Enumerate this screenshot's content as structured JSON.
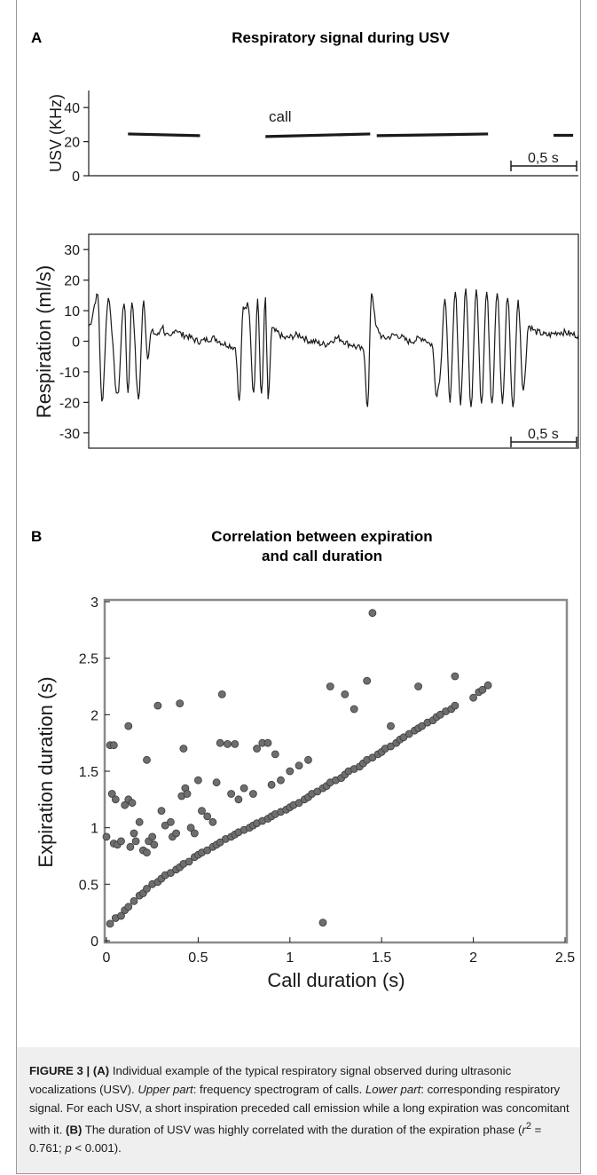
{
  "panels": {
    "a_label": "A",
    "b_label": "B"
  },
  "chart_data": [
    {
      "type": "line",
      "title": "Respiratory signal during USV",
      "ylabel": "USV (KHz)",
      "yticks": [
        "0",
        "20",
        "40"
      ],
      "ylim": [
        0,
        50
      ],
      "annotation": "call",
      "scale_bar": "0,5 s",
      "series": [
        {
          "segments": [
            {
              "x": [
                0.3,
                0.85
              ],
              "y": [
                24.5,
                23.5
              ]
            },
            {
              "x": [
                1.35,
                2.15
              ],
              "y": [
                23.0,
                24.5
              ]
            },
            {
              "x": [
                2.2,
                3.05
              ],
              "y": [
                23.5,
                24.5
              ]
            },
            {
              "x": [
                3.55,
                3.7
              ],
              "y": [
                23.7,
                23.7
              ]
            }
          ]
        }
      ],
      "xlim": [
        0,
        3.74
      ]
    },
    {
      "type": "line",
      "ylabel": "Respiration (ml/s)",
      "yticks": [
        "-30",
        "-20",
        "-10",
        "0",
        "10",
        "20",
        "30"
      ],
      "ylim": [
        -35,
        35
      ],
      "scale_bar": "0,5 s",
      "xlim": [
        0,
        3.74
      ],
      "series": [
        {
          "segments": [
            {
              "x": [
                0.0,
                0.07,
                0.1,
                0.15,
                0.22,
                0.27,
                0.3,
                0.33,
                0.38,
                0.42,
                0.45,
                0.48,
                0.53,
                0.56,
                0.59,
                0.62,
                0.66,
                0.72,
                0.85,
                0.95,
                1.05,
                1.12,
                1.15,
                1.18,
                1.22,
                1.26,
                1.29,
                1.32,
                1.35,
                1.37,
                1.4,
                1.43,
                1.5,
                1.6,
                1.7,
                1.8,
                1.9,
                2.0,
                2.05,
                2.1,
                2.13,
                2.16,
                2.2,
                2.25,
                2.35,
                2.45,
                2.55,
                2.62,
                2.66,
                2.68,
                2.72,
                2.76,
                2.8,
                2.84,
                2.88,
                2.92,
                2.96,
                3.0,
                3.04,
                3.08,
                3.12,
                3.16,
                3.2,
                3.24,
                3.28,
                3.32,
                3.36,
                3.42,
                3.5,
                3.6,
                3.74
              ],
              "y": [
                5,
                15,
                -20,
                14,
                -18,
                13,
                -17,
                13,
                -19,
                13,
                -5,
                3,
                2,
                5,
                2,
                1,
                4,
                2,
                0,
                1,
                -1,
                -2,
                -20,
                11,
                12,
                -17,
                13,
                -18,
                14,
                -20,
                4,
                3,
                1,
                2,
                0,
                -1,
                1,
                -1,
                -2,
                -3,
                -22,
                16,
                4,
                1,
                2,
                0,
                1,
                -1,
                -18,
                -12,
                14,
                -19,
                16,
                -20,
                17,
                -21,
                17,
                -20,
                17,
                -21,
                16,
                -20,
                15,
                -22,
                13,
                -16,
                5,
                3,
                2,
                3,
                2
              ]
            }
          ]
        }
      ]
    },
    {
      "type": "scatter",
      "title": "Correlation between expiration\nand call duration",
      "xlabel": "Call duration (s)",
      "ylabel": "Expiration  duration (s)",
      "xlim": [
        0,
        2.5
      ],
      "ylim": [
        0,
        3
      ],
      "xticks": [
        "0",
        "0.5",
        "1",
        "1.5",
        "2",
        "2.5"
      ],
      "yticks": [
        "0",
        "0.5",
        "1",
        "1.5",
        "2",
        "2.5",
        "3"
      ],
      "points_main": [
        [
          0.02,
          0.15
        ],
        [
          0.05,
          0.2
        ],
        [
          0.08,
          0.22
        ],
        [
          0.1,
          0.27
        ],
        [
          0.12,
          0.3
        ],
        [
          0.15,
          0.35
        ],
        [
          0.18,
          0.4
        ],
        [
          0.2,
          0.42
        ],
        [
          0.22,
          0.46
        ],
        [
          0.25,
          0.5
        ],
        [
          0.28,
          0.52
        ],
        [
          0.3,
          0.55
        ],
        [
          0.32,
          0.58
        ],
        [
          0.35,
          0.6
        ],
        [
          0.38,
          0.63
        ],
        [
          0.4,
          0.65
        ],
        [
          0.42,
          0.68
        ],
        [
          0.45,
          0.7
        ],
        [
          0.48,
          0.74
        ],
        [
          0.5,
          0.76
        ],
        [
          0.52,
          0.78
        ],
        [
          0.55,
          0.8
        ],
        [
          0.58,
          0.83
        ],
        [
          0.6,
          0.85
        ],
        [
          0.62,
          0.87
        ],
        [
          0.65,
          0.9
        ],
        [
          0.68,
          0.92
        ],
        [
          0.7,
          0.94
        ],
        [
          0.72,
          0.96
        ],
        [
          0.75,
          0.98
        ],
        [
          0.78,
          1.0
        ],
        [
          0.8,
          1.02
        ],
        [
          0.82,
          1.04
        ],
        [
          0.85,
          1.06
        ],
        [
          0.88,
          1.08
        ],
        [
          0.9,
          1.1
        ],
        [
          0.92,
          1.12
        ],
        [
          0.95,
          1.14
        ],
        [
          0.98,
          1.16
        ],
        [
          1.0,
          1.18
        ],
        [
          1.02,
          1.2
        ],
        [
          1.05,
          1.22
        ],
        [
          1.08,
          1.25
        ],
        [
          1.1,
          1.27
        ],
        [
          1.12,
          1.3
        ],
        [
          1.15,
          1.32
        ],
        [
          1.18,
          1.35
        ],
        [
          1.2,
          1.37
        ],
        [
          1.22,
          1.4
        ],
        [
          1.25,
          1.42
        ],
        [
          1.28,
          1.44
        ],
        [
          1.3,
          1.47
        ],
        [
          1.32,
          1.5
        ],
        [
          1.35,
          1.52
        ],
        [
          1.38,
          1.54
        ],
        [
          1.4,
          1.57
        ],
        [
          1.42,
          1.6
        ],
        [
          1.45,
          1.62
        ],
        [
          1.48,
          1.65
        ],
        [
          1.5,
          1.67
        ],
        [
          1.52,
          1.7
        ],
        [
          1.55,
          1.72
        ],
        [
          1.58,
          1.75
        ],
        [
          1.6,
          1.78
        ],
        [
          1.62,
          1.8
        ],
        [
          1.65,
          1.83
        ],
        [
          1.68,
          1.86
        ],
        [
          1.7,
          1.88
        ],
        [
          1.72,
          1.9
        ],
        [
          1.75,
          1.93
        ],
        [
          1.78,
          1.95
        ],
        [
          1.8,
          1.98
        ],
        [
          1.82,
          2.0
        ],
        [
          1.85,
          2.03
        ],
        [
          1.88,
          2.05
        ],
        [
          1.9,
          2.08
        ],
        [
          2.0,
          2.15
        ],
        [
          2.03,
          2.2
        ],
        [
          2.05,
          2.22
        ],
        [
          2.08,
          2.26
        ]
      ],
      "points_outliers": [
        [
          0.0,
          0.92
        ],
        [
          0.02,
          1.73
        ],
        [
          0.04,
          1.73
        ],
        [
          0.03,
          1.3
        ],
        [
          0.05,
          1.25
        ],
        [
          0.04,
          0.86
        ],
        [
          0.06,
          0.85
        ],
        [
          0.08,
          0.88
        ],
        [
          0.1,
          1.2
        ],
        [
          0.12,
          1.25
        ],
        [
          0.14,
          1.22
        ],
        [
          0.12,
          1.9
        ],
        [
          0.13,
          0.83
        ],
        [
          0.15,
          0.95
        ],
        [
          0.16,
          0.88
        ],
        [
          0.18,
          1.05
        ],
        [
          0.2,
          0.8
        ],
        [
          0.22,
          0.78
        ],
        [
          0.23,
          0.88
        ],
        [
          0.22,
          1.6
        ],
        [
          0.25,
          0.92
        ],
        [
          0.26,
          0.85
        ],
        [
          0.28,
          2.08
        ],
        [
          0.3,
          1.15
        ],
        [
          0.32,
          1.02
        ],
        [
          0.35,
          1.05
        ],
        [
          0.36,
          0.92
        ],
        [
          0.38,
          0.95
        ],
        [
          0.4,
          2.1
        ],
        [
          0.41,
          1.28
        ],
        [
          0.42,
          1.7
        ],
        [
          0.43,
          1.35
        ],
        [
          0.44,
          1.3
        ],
        [
          0.46,
          1.0
        ],
        [
          0.48,
          0.95
        ],
        [
          0.5,
          1.42
        ],
        [
          0.52,
          1.15
        ],
        [
          0.55,
          1.1
        ],
        [
          0.58,
          1.05
        ],
        [
          0.6,
          1.4
        ],
        [
          0.62,
          1.75
        ],
        [
          0.63,
          2.18
        ],
        [
          0.66,
          1.74
        ],
        [
          0.68,
          1.3
        ],
        [
          0.7,
          1.74
        ],
        [
          0.72,
          1.25
        ],
        [
          0.75,
          1.35
        ],
        [
          0.8,
          1.3
        ],
        [
          0.82,
          1.7
        ],
        [
          0.85,
          1.75
        ],
        [
          0.88,
          1.75
        ],
        [
          0.92,
          1.65
        ],
        [
          0.9,
          1.38
        ],
        [
          0.95,
          1.42
        ],
        [
          1.0,
          1.5
        ],
        [
          1.05,
          1.55
        ],
        [
          1.1,
          1.6
        ],
        [
          1.22,
          2.25
        ],
        [
          1.3,
          2.18
        ],
        [
          1.35,
          2.05
        ],
        [
          1.42,
          2.3
        ],
        [
          1.45,
          2.9
        ],
        [
          1.55,
          1.9
        ],
        [
          1.7,
          2.25
        ],
        [
          1.9,
          2.34
        ],
        [
          1.18,
          0.16
        ]
      ]
    }
  ],
  "caption": {
    "fig_label": "FIGURE 3 | ",
    "a_ref": "(A)",
    "a_text": " Individual example of the typical respiratory signal observed during ultrasonic vocalizations (USV). ",
    "upper_label": "Upper part",
    "upper_text": ": frequency spectrogram of calls. ",
    "lower_label": "Lower part",
    "lower_text": ": corresponding respiratory signal. For each USV, a short inspiration preceded call emission while a long expiration was concomitant with it. ",
    "b_ref": "(B)",
    "b_text": " The duration of USV was highly correlated with the duration of the expiration phase (",
    "stat_r": "r",
    "stat_sup": "2",
    "stat_rest": " = 0.761; ",
    "stat_p": "p",
    "stat_end": " < 0.001)."
  },
  "colors": {
    "trace": "#1a1a1a",
    "marker_fill": "#6e6e6e",
    "marker_edge": "#3a3a3a",
    "frame_bg": "#efefef"
  }
}
